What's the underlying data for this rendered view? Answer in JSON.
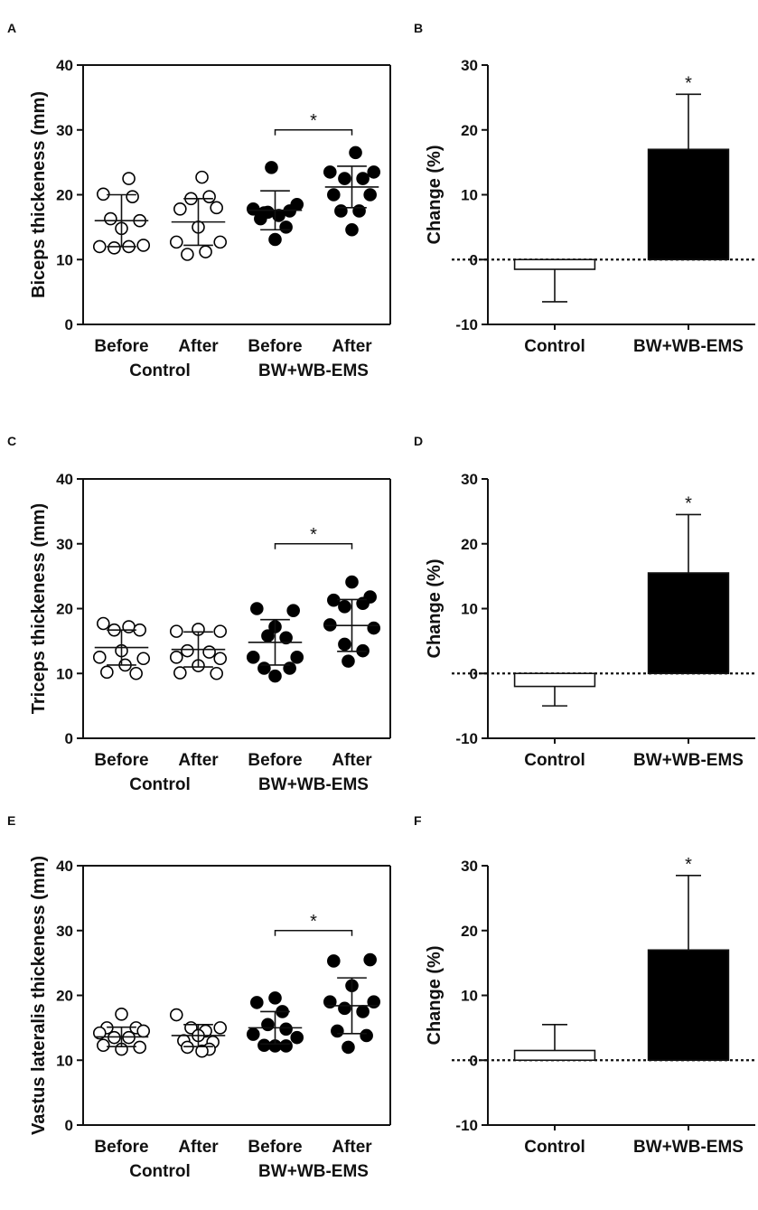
{
  "chart_data": [
    {
      "panel": "A",
      "type": "scatter",
      "ylabel": "Biceps thickeness (mm)",
      "ylim": [
        0,
        40
      ],
      "yticks": [
        0,
        10,
        20,
        30,
        40
      ],
      "categories": [
        "Before",
        "After",
        "Before",
        "After"
      ],
      "groups": [
        {
          "label": "Control",
          "categories": [
            0,
            1
          ]
        },
        {
          "label": "BW+WB-EMS",
          "categories": [
            2,
            3
          ]
        }
      ],
      "series": [
        {
          "category": 0,
          "fill": "open",
          "mean": 16.0,
          "sd": 4.0,
          "points": [
            [
              -0.3,
              12.0
            ],
            [
              0.3,
              12.2
            ],
            [
              -0.25,
              20.1
            ],
            [
              0.15,
              19.7
            ],
            [
              0.1,
              22.5
            ],
            [
              0.0,
              14.8
            ],
            [
              -0.15,
              16.3
            ],
            [
              0.25,
              16.0
            ],
            [
              -0.1,
              11.8
            ],
            [
              0.1,
              12.0
            ]
          ]
        },
        {
          "category": 1,
          "fill": "open",
          "mean": 15.8,
          "sd": 3.6,
          "points": [
            [
              -0.3,
              12.7
            ],
            [
              0.3,
              12.7
            ],
            [
              -0.25,
              17.8
            ],
            [
              0.25,
              18.0
            ],
            [
              0.05,
              22.7
            ],
            [
              -0.1,
              19.4
            ],
            [
              0.15,
              19.7
            ],
            [
              0.0,
              15.0
            ],
            [
              -0.15,
              10.8
            ],
            [
              0.1,
              11.2
            ]
          ]
        },
        {
          "category": 2,
          "fill": "filled",
          "mean": 17.6,
          "sd": 3.0,
          "points": [
            [
              -0.3,
              17.8
            ],
            [
              0.3,
              18.5
            ],
            [
              -0.05,
              24.2
            ],
            [
              -0.1,
              17.3
            ],
            [
              0.05,
              16.8
            ],
            [
              0.2,
              17.5
            ],
            [
              -0.2,
              16.3
            ],
            [
              0.0,
              13.1
            ],
            [
              0.15,
              15.0
            ],
            [
              -0.15,
              17.2
            ]
          ]
        },
        {
          "category": 3,
          "fill": "filled",
          "mean": 21.2,
          "sd": 3.2,
          "points": [
            [
              -0.3,
              23.5
            ],
            [
              0.3,
              23.5
            ],
            [
              0.05,
              26.5
            ],
            [
              -0.1,
              22.5
            ],
            [
              0.15,
              22.5
            ],
            [
              -0.25,
              20.0
            ],
            [
              0.25,
              20.0
            ],
            [
              -0.15,
              17.5
            ],
            [
              0.1,
              17.5
            ],
            [
              0.0,
              14.6
            ]
          ]
        }
      ],
      "significance": {
        "from": 2,
        "to": 3,
        "y": 30.0,
        "label": "*"
      }
    },
    {
      "panel": "B",
      "type": "bar",
      "ylabel": "Change (%)",
      "ylim": [
        -10,
        30
      ],
      "yticks": [
        -10,
        0,
        10,
        20,
        30
      ],
      "categories": [
        "Control",
        "BW+WB-EMS"
      ],
      "values": [
        -1.5,
        17.0
      ],
      "errors": [
        5.0,
        8.5
      ],
      "fills": [
        "open",
        "filled"
      ],
      "significance": [
        {
          "index": 1,
          "label": "*"
        }
      ]
    },
    {
      "panel": "C",
      "type": "scatter",
      "ylabel": "Triceps thickeness (mm)",
      "ylim": [
        0,
        40
      ],
      "yticks": [
        0,
        10,
        20,
        30,
        40
      ],
      "categories": [
        "Before",
        "After",
        "Before",
        "After"
      ],
      "groups": [
        {
          "label": "Control",
          "categories": [
            0,
            1
          ]
        },
        {
          "label": "BW+WB-EMS",
          "categories": [
            2,
            3
          ]
        }
      ],
      "series": [
        {
          "category": 0,
          "fill": "open",
          "mean": 14.0,
          "sd": 2.7,
          "points": [
            [
              -0.25,
              17.7
            ],
            [
              0.1,
              17.2
            ],
            [
              -0.1,
              16.7
            ],
            [
              0.25,
              16.7
            ],
            [
              0.0,
              13.5
            ],
            [
              -0.3,
              12.5
            ],
            [
              0.3,
              12.3
            ],
            [
              -0.2,
              10.2
            ],
            [
              0.2,
              10.0
            ],
            [
              0.05,
              11.3
            ]
          ]
        },
        {
          "category": 1,
          "fill": "open",
          "mean": 13.7,
          "sd": 2.7,
          "points": [
            [
              -0.3,
              16.5
            ],
            [
              0.3,
              16.5
            ],
            [
              0.0,
              16.8
            ],
            [
              -0.15,
              13.5
            ],
            [
              0.15,
              13.3
            ],
            [
              -0.3,
              12.5
            ],
            [
              0.3,
              12.3
            ],
            [
              -0.25,
              10.1
            ],
            [
              0.25,
              10.0
            ],
            [
              0.0,
              11.2
            ]
          ]
        },
        {
          "category": 2,
          "fill": "filled",
          "mean": 14.8,
          "sd": 3.5,
          "points": [
            [
              -0.25,
              20.0
            ],
            [
              0.25,
              19.7
            ],
            [
              0.0,
              17.2
            ],
            [
              -0.1,
              15.8
            ],
            [
              0.15,
              15.5
            ],
            [
              -0.3,
              12.5
            ],
            [
              0.3,
              12.5
            ],
            [
              -0.15,
              10.8
            ],
            [
              0.2,
              10.8
            ],
            [
              0.0,
              9.6
            ]
          ]
        },
        {
          "category": 3,
          "fill": "filled",
          "mean": 17.4,
          "sd": 4.0,
          "points": [
            [
              0.0,
              24.1
            ],
            [
              -0.25,
              21.3
            ],
            [
              0.25,
              21.8
            ],
            [
              -0.1,
              20.3
            ],
            [
              0.15,
              20.8
            ],
            [
              -0.3,
              17.5
            ],
            [
              0.3,
              17.0
            ],
            [
              -0.1,
              14.5
            ],
            [
              0.15,
              13.5
            ],
            [
              -0.05,
              11.9
            ]
          ]
        }
      ],
      "significance": {
        "from": 2,
        "to": 3,
        "y": 30.0,
        "label": "*"
      }
    },
    {
      "panel": "D",
      "type": "bar",
      "ylabel": "Change (%)",
      "ylim": [
        -10,
        30
      ],
      "yticks": [
        -10,
        0,
        10,
        20,
        30
      ],
      "categories": [
        "Control",
        "BW+WB-EMS"
      ],
      "values": [
        -2.0,
        15.5
      ],
      "errors": [
        3.0,
        9.0
      ],
      "fills": [
        "open",
        "filled"
      ],
      "significance": [
        {
          "index": 1,
          "label": "*"
        }
      ]
    },
    {
      "panel": "E",
      "type": "scatter",
      "ylabel": "Vastus lateralis thickeness (mm)",
      "ylim": [
        0,
        40
      ],
      "yticks": [
        0,
        10,
        20,
        30,
        40
      ],
      "categories": [
        "Before",
        "After",
        "Before",
        "After"
      ],
      "groups": [
        {
          "label": "Control",
          "categories": [
            0,
            1
          ]
        },
        {
          "label": "BW+WB-EMS",
          "categories": [
            2,
            3
          ]
        }
      ],
      "series": [
        {
          "category": 0,
          "fill": "open",
          "mean": 13.6,
          "sd": 1.5,
          "points": [
            [
              0.0,
              17.1
            ],
            [
              -0.2,
              15.0
            ],
            [
              0.2,
              15.0
            ],
            [
              -0.3,
              14.2
            ],
            [
              0.3,
              14.5
            ],
            [
              -0.1,
              13.5
            ],
            [
              0.1,
              13.5
            ],
            [
              -0.25,
              12.3
            ],
            [
              0.25,
              12.0
            ],
            [
              0.0,
              11.7
            ]
          ]
        },
        {
          "category": 1,
          "fill": "open",
          "mean": 13.8,
          "sd": 1.7,
          "points": [
            [
              -0.3,
              17.0
            ],
            [
              0.3,
              15.0
            ],
            [
              -0.1,
              15.0
            ],
            [
              0.1,
              14.5
            ],
            [
              0.0,
              13.8
            ],
            [
              -0.2,
              13.0
            ],
            [
              0.2,
              12.8
            ],
            [
              -0.15,
              12.0
            ],
            [
              0.15,
              11.7
            ],
            [
              0.05,
              11.4
            ]
          ]
        },
        {
          "category": 2,
          "fill": "filled",
          "mean": 15.0,
          "sd": 2.5,
          "points": [
            [
              0.0,
              19.6
            ],
            [
              -0.25,
              18.9
            ],
            [
              0.1,
              17.5
            ],
            [
              -0.1,
              15.5
            ],
            [
              0.15,
              14.8
            ],
            [
              -0.3,
              14.0
            ],
            [
              0.3,
              13.5
            ],
            [
              -0.15,
              12.3
            ],
            [
              0.15,
              12.2
            ],
            [
              0.0,
              12.2
            ]
          ]
        },
        {
          "category": 3,
          "fill": "filled",
          "mean": 18.4,
          "sd": 4.3,
          "points": [
            [
              -0.25,
              25.3
            ],
            [
              0.25,
              25.5
            ],
            [
              0.0,
              21.5
            ],
            [
              -0.3,
              19.0
            ],
            [
              0.3,
              19.0
            ],
            [
              -0.1,
              18.0
            ],
            [
              0.15,
              17.5
            ],
            [
              -0.2,
              14.5
            ],
            [
              0.2,
              13.8
            ],
            [
              -0.05,
              12.0
            ]
          ]
        }
      ],
      "significance": {
        "from": 2,
        "to": 3,
        "y": 30.0,
        "label": "*"
      }
    },
    {
      "panel": "F",
      "type": "bar",
      "ylabel": "Change (%)",
      "ylim": [
        -10,
        30
      ],
      "yticks": [
        -10,
        0,
        10,
        20,
        30
      ],
      "categories": [
        "Control",
        "BW+WB-EMS"
      ],
      "values": [
        1.5,
        17.0
      ],
      "errors": [
        4.0,
        11.5
      ],
      "fills": [
        "open",
        "filled"
      ],
      "significance": [
        {
          "index": 1,
          "label": "*"
        }
      ]
    }
  ]
}
